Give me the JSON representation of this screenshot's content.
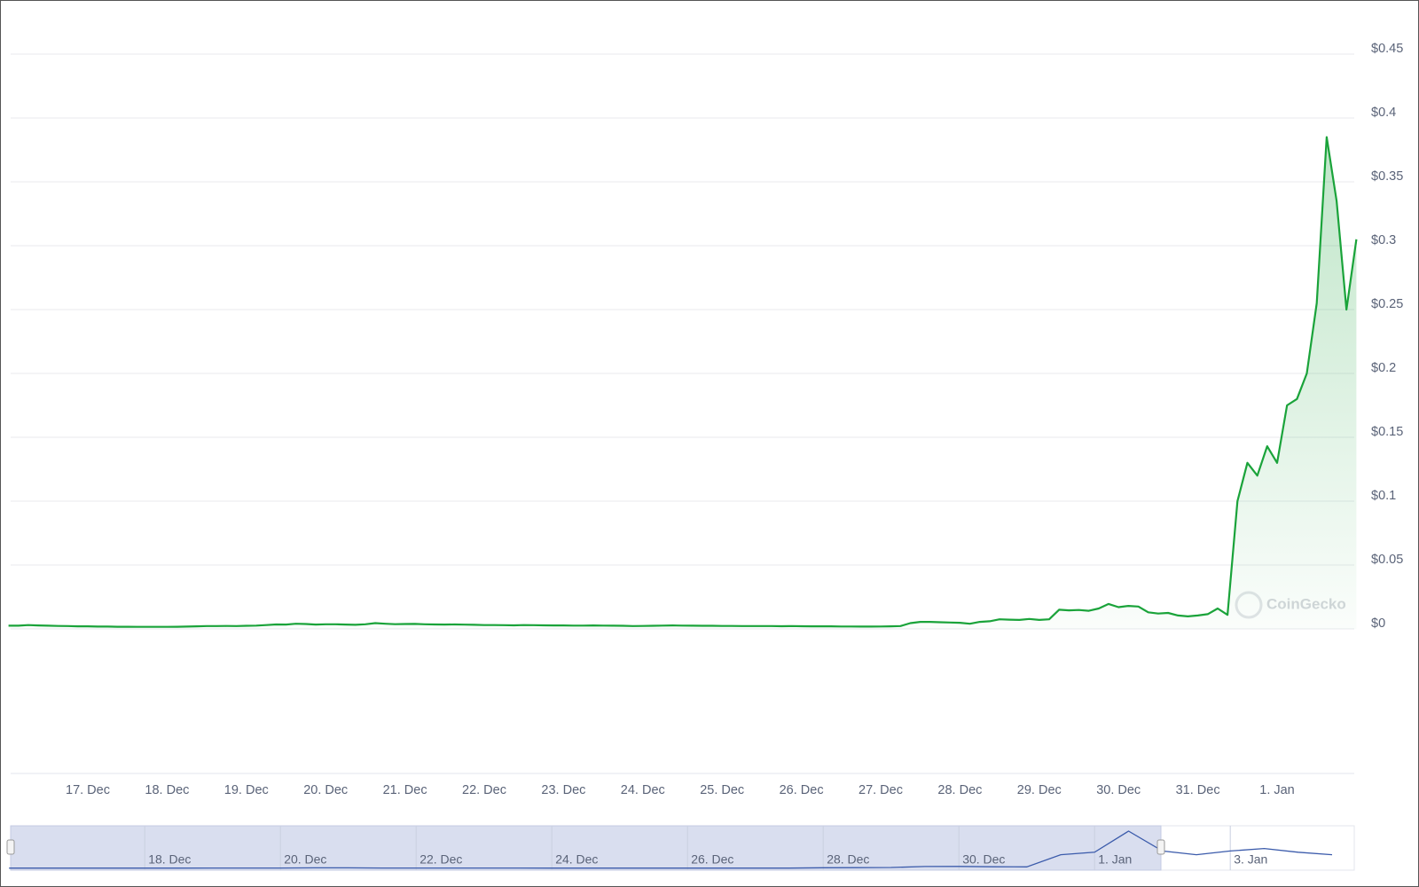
{
  "chart_data": [
    {
      "type": "line",
      "color": "#1aa33a",
      "watermark": "CoinGecko",
      "ylim": [
        0,
        0.45
      ],
      "yticks": [
        {
          "value": 0,
          "label": "$0"
        },
        {
          "value": 0.05,
          "label": "$0.05"
        },
        {
          "value": 0.1,
          "label": "$0.1"
        },
        {
          "value": 0.15,
          "label": "$0.15"
        },
        {
          "value": 0.2,
          "label": "$0.2"
        },
        {
          "value": 0.25,
          "label": "$0.25"
        },
        {
          "value": 0.3,
          "label": "$0.3"
        },
        {
          "value": 0.35,
          "label": "$0.35"
        },
        {
          "value": 0.4,
          "label": "$0.4"
        },
        {
          "value": 0.45,
          "label": "$0.45"
        }
      ],
      "grid": true,
      "categories": [
        null,
        null,
        null,
        null,
        null,
        null,
        null,
        null,
        "17. Dec",
        null,
        null,
        null,
        null,
        null,
        null,
        null,
        "18. Dec",
        null,
        null,
        null,
        null,
        null,
        null,
        null,
        "19. Dec",
        null,
        null,
        null,
        null,
        null,
        null,
        null,
        "20. Dec",
        null,
        null,
        null,
        null,
        null,
        null,
        null,
        "21. Dec",
        null,
        null,
        null,
        null,
        null,
        null,
        null,
        "22. Dec",
        null,
        null,
        null,
        null,
        null,
        null,
        null,
        "23. Dec",
        null,
        null,
        null,
        null,
        null,
        null,
        null,
        "24. Dec",
        null,
        null,
        null,
        null,
        null,
        null,
        null,
        "25. Dec",
        null,
        null,
        null,
        null,
        null,
        null,
        null,
        "26. Dec",
        null,
        null,
        null,
        null,
        null,
        null,
        null,
        "27. Dec",
        null,
        null,
        null,
        null,
        null,
        null,
        null,
        "28. Dec",
        null,
        null,
        null,
        null,
        null,
        null,
        null,
        "29. Dec",
        null,
        null,
        null,
        null,
        null,
        null,
        null,
        "30. Dec",
        null,
        null,
        null,
        null,
        null,
        null,
        null,
        "31. Dec",
        null,
        null,
        null,
        null,
        null,
        null,
        null,
        "1. Jan",
        null,
        null,
        null,
        null,
        null,
        null,
        null,
        null
      ],
      "values": [
        0.0025,
        0.0025,
        0.003,
        0.0027,
        0.0025,
        0.0023,
        0.0022,
        0.002,
        0.002,
        0.0018,
        0.0018,
        0.0017,
        0.0017,
        0.0016,
        0.0016,
        0.0016,
        0.0016,
        0.0017,
        0.0018,
        0.002,
        0.0022,
        0.0022,
        0.0023,
        0.0022,
        0.0024,
        0.0026,
        0.003,
        0.0035,
        0.0034,
        0.004,
        0.0038,
        0.0034,
        0.0036,
        0.0036,
        0.0034,
        0.0032,
        0.0036,
        0.0045,
        0.004,
        0.0037,
        0.0038,
        0.0039,
        0.0036,
        0.0035,
        0.0034,
        0.0035,
        0.0033,
        0.0032,
        0.003,
        0.003,
        0.0029,
        0.0028,
        0.003,
        0.0029,
        0.0028,
        0.0027,
        0.0027,
        0.0026,
        0.0026,
        0.0027,
        0.0026,
        0.0025,
        0.0024,
        0.0022,
        0.0023,
        0.0024,
        0.0026,
        0.0027,
        0.0026,
        0.0025,
        0.0024,
        0.0024,
        0.0023,
        0.0023,
        0.0022,
        0.0022,
        0.0022,
        0.0022,
        0.0021,
        0.0022,
        0.0021,
        0.002,
        0.002,
        0.002,
        0.0019,
        0.0019,
        0.0018,
        0.0018,
        0.0019,
        0.002,
        0.0022,
        0.0045,
        0.0055,
        0.0055,
        0.0052,
        0.005,
        0.0048,
        0.004,
        0.0055,
        0.006,
        0.0075,
        0.0072,
        0.007,
        0.0078,
        0.007,
        0.0075,
        0.015,
        0.0145,
        0.0148,
        0.0142,
        0.016,
        0.0195,
        0.017,
        0.018,
        0.0175,
        0.013,
        0.012,
        0.0125,
        0.0105,
        0.0098,
        0.0105,
        0.0115,
        0.016,
        0.011,
        0.1,
        0.13,
        0.12,
        0.143,
        0.13,
        0.175,
        0.18,
        0.2,
        0.255,
        0.385,
        0.335,
        0.25,
        0.305
      ]
    },
    {
      "type": "navigator",
      "color": "#3b5bab",
      "categories": [
        null,
        null,
        null,
        null,
        "18. Dec",
        null,
        null,
        null,
        "20. Dec",
        null,
        null,
        null,
        "22. Dec",
        null,
        null,
        null,
        "24. Dec",
        null,
        null,
        null,
        "26. Dec",
        null,
        null,
        null,
        "28. Dec",
        null,
        null,
        null,
        "30. Dec",
        null,
        null,
        null,
        "1. Jan",
        null,
        null,
        null,
        "3. Jan",
        null,
        null,
        null
      ],
      "values": [
        0.002,
        0.002,
        0.002,
        0.002,
        0.002,
        0.002,
        0.003,
        0.003,
        0.003,
        0.004,
        0.004,
        0.003,
        0.003,
        0.003,
        0.003,
        0.003,
        0.002,
        0.002,
        0.002,
        0.002,
        0.002,
        0.002,
        0.002,
        0.002,
        0.005,
        0.006,
        0.007,
        0.015,
        0.016,
        0.013,
        0.012,
        0.11,
        0.13,
        0.3,
        0.14,
        0.11,
        0.14,
        0.16,
        0.13,
        0.11
      ]
    }
  ]
}
